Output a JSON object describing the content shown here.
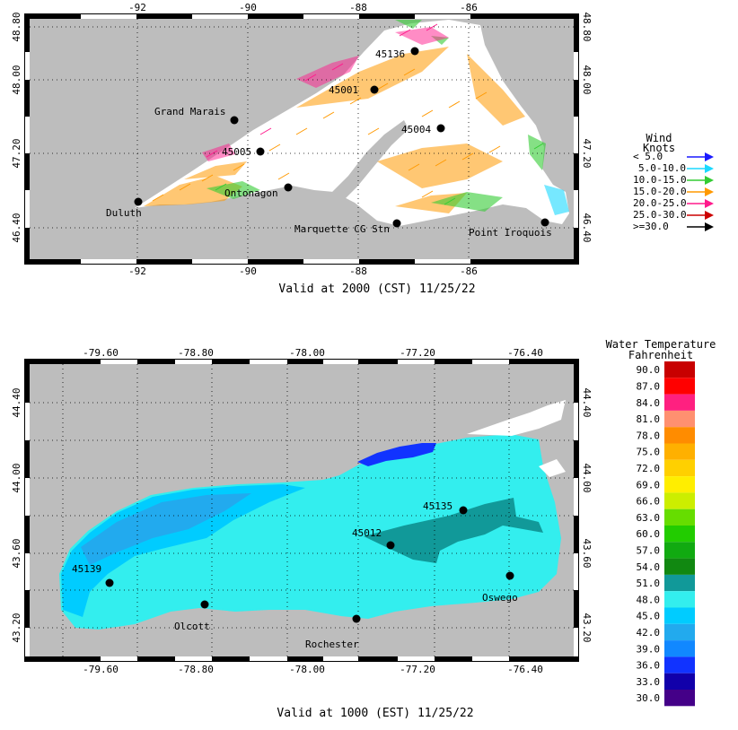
{
  "superior_map": {
    "lon_ticks": [
      "-92",
      "-90",
      "-88",
      "-86"
    ],
    "lat_ticks": [
      "46.40",
      "47.20",
      "48.00",
      "48.80"
    ],
    "stations": [
      {
        "name": "Duluth"
      },
      {
        "name": "Grand Marais"
      },
      {
        "name": "45005"
      },
      {
        "name": "Ontonagon"
      },
      {
        "name": "45001"
      },
      {
        "name": "45136"
      },
      {
        "name": "45004"
      },
      {
        "name": "Marquette CG Stn"
      },
      {
        "name": "Point Iroquois"
      }
    ],
    "valid_time": "Valid at 2000 (CST) 11/25/22"
  },
  "wind_legend": {
    "title_line1": "Wind",
    "title_line2": "Knots",
    "entries": [
      {
        "label": "< 5.0",
        "color": "#1a1aff"
      },
      {
        "label": "5.0-10.0",
        "color": "#1ad9ff"
      },
      {
        "label": "10.0-15.0",
        "color": "#33cc33"
      },
      {
        "label": "15.0-20.0",
        "color": "#ff9900"
      },
      {
        "label": "20.0-25.0",
        "color": "#ff1a8c"
      },
      {
        "label": "25.0-30.0",
        "color": "#cc0000"
      },
      {
        "label": ">=30.0",
        "color": "#000000"
      }
    ]
  },
  "ontario_map": {
    "lon_ticks": [
      "-79.60",
      "-78.80",
      "-78.00",
      "-77.20",
      "-76.40"
    ],
    "lat_ticks": [
      "43.20",
      "43.60",
      "44.00",
      "44.40"
    ],
    "stations": [
      {
        "name": "45139"
      },
      {
        "name": "Olcott"
      },
      {
        "name": "Rochester"
      },
      {
        "name": "45012"
      },
      {
        "name": "45135"
      },
      {
        "name": "Oswego"
      }
    ],
    "valid_time": "Valid at 1000 (EST) 11/25/22"
  },
  "temp_legend": {
    "title_line1": "Water Temperature",
    "title_line2": "Fahrenheit",
    "entries": [
      {
        "label": "90.0",
        "color": "#c80000"
      },
      {
        "label": "87.0",
        "color": "#ff0000"
      },
      {
        "label": "84.0",
        "color": "#ff2080"
      },
      {
        "label": "81.0",
        "color": "#ff9070"
      },
      {
        "label": "78.0",
        "color": "#ff8c00"
      },
      {
        "label": "75.0",
        "color": "#ffb000"
      },
      {
        "label": "72.0",
        "color": "#ffd000"
      },
      {
        "label": "69.0",
        "color": "#ffee00"
      },
      {
        "label": "66.0",
        "color": "#ccee00"
      },
      {
        "label": "63.0",
        "color": "#66dd00"
      },
      {
        "label": "60.0",
        "color": "#22cc00"
      },
      {
        "label": "57.0",
        "color": "#11aa11"
      },
      {
        "label": "54.0",
        "color": "#118811"
      },
      {
        "label": "51.0",
        "color": "#119999"
      },
      {
        "label": "48.0",
        "color": "#33eeee"
      },
      {
        "label": "45.0",
        "color": "#00ccff"
      },
      {
        "label": "42.0",
        "color": "#22aaee"
      },
      {
        "label": "39.0",
        "color": "#1188ff"
      },
      {
        "label": "36.0",
        "color": "#1133ff"
      },
      {
        "label": "33.0",
        "color": "#1100aa"
      },
      {
        "label": "30.0",
        "color": "#440088"
      }
    ]
  }
}
